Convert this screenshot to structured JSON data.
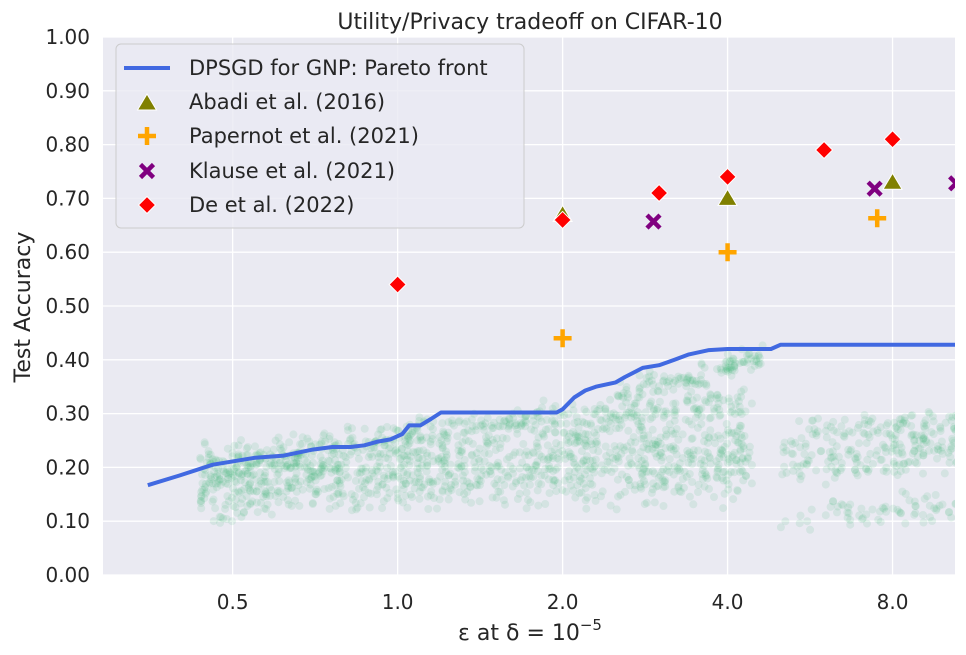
{
  "chart_data": {
    "type": "scatter",
    "title": "Utility/Privacy tradeoff on CIFAR-10",
    "xlabel_main": "ε at δ = 10",
    "xlabel_exp": "−5",
    "ylabel": "Test Accuracy",
    "xscale": "log2",
    "xlim": [
      0.29,
      10.4
    ],
    "ylim": [
      0.0,
      1.0
    ],
    "xticks": [
      0.5,
      1.0,
      2.0,
      4.0,
      8.0
    ],
    "xtick_labels": [
      "0.5",
      "1.0",
      "2.0",
      "4.0",
      "8.0"
    ],
    "yticks": [
      0.0,
      0.1,
      0.2,
      0.3,
      0.4,
      0.5,
      0.6,
      0.7,
      0.8,
      0.9,
      1.0
    ],
    "ytick_labels": [
      "0.00",
      "0.10",
      "0.20",
      "0.30",
      "0.40",
      "0.50",
      "0.60",
      "0.70",
      "0.80",
      "0.90",
      "1.00"
    ],
    "grid": true,
    "legend_position": "top-left",
    "colors": {
      "background": "#eaeaf2",
      "grid": "#ffffff",
      "pareto": "#4169e1",
      "cloud": "#3cb371",
      "abadi": "#808000",
      "papernot": "#ffa500",
      "klause": "#800080",
      "de": "#ff0000"
    },
    "series": [
      {
        "name": "DPSGD for GNP: Pareto front",
        "kind": "line",
        "x": [
          0.35,
          0.4,
          0.46,
          0.55,
          0.62,
          0.7,
          0.76,
          0.82,
          0.87,
          0.92,
          0.97,
          1.02,
          1.05,
          1.1,
          1.15,
          1.2,
          1.25,
          1.3,
          1.4,
          1.55,
          1.7,
          1.85,
          1.95,
          2.0,
          2.1,
          2.2,
          2.3,
          2.5,
          2.6,
          2.8,
          3.0,
          3.2,
          3.4,
          3.7,
          4.0,
          4.3,
          4.8,
          5.0,
          6.0,
          8.0,
          10.4
        ],
        "y": [
          0.167,
          0.185,
          0.205,
          0.218,
          0.222,
          0.233,
          0.238,
          0.238,
          0.241,
          0.248,
          0.252,
          0.262,
          0.278,
          0.278,
          0.29,
          0.302,
          0.302,
          0.302,
          0.302,
          0.302,
          0.302,
          0.302,
          0.302,
          0.308,
          0.33,
          0.343,
          0.35,
          0.358,
          0.368,
          0.385,
          0.39,
          0.4,
          0.41,
          0.418,
          0.42,
          0.42,
          0.42,
          0.428,
          0.428,
          0.428,
          0.428
        ]
      },
      {
        "name": "Abadi et al. (2016)",
        "kind": "scatter",
        "marker": "triangle",
        "points": [
          [
            2.0,
            0.67
          ],
          [
            4.0,
            0.7
          ],
          [
            8.0,
            0.73
          ]
        ]
      },
      {
        "name": "Papernot et al. (2021)",
        "kind": "scatter",
        "marker": "plus",
        "points": [
          [
            2.0,
            0.44
          ],
          [
            4.0,
            0.6
          ],
          [
            7.5,
            0.663
          ]
        ]
      },
      {
        "name": "Klause et al. (2021)",
        "kind": "scatter",
        "marker": "x",
        "points": [
          [
            2.93,
            0.657
          ],
          [
            7.42,
            0.718
          ],
          [
            10.45,
            0.728
          ]
        ]
      },
      {
        "name": "De et al. (2022)",
        "kind": "scatter",
        "marker": "diamond",
        "points": [
          [
            1.0,
            0.54
          ],
          [
            2.0,
            0.66
          ],
          [
            3.0,
            0.71
          ],
          [
            4.0,
            0.74
          ],
          [
            6.0,
            0.79
          ],
          [
            8.0,
            0.81
          ]
        ]
      }
    ]
  }
}
